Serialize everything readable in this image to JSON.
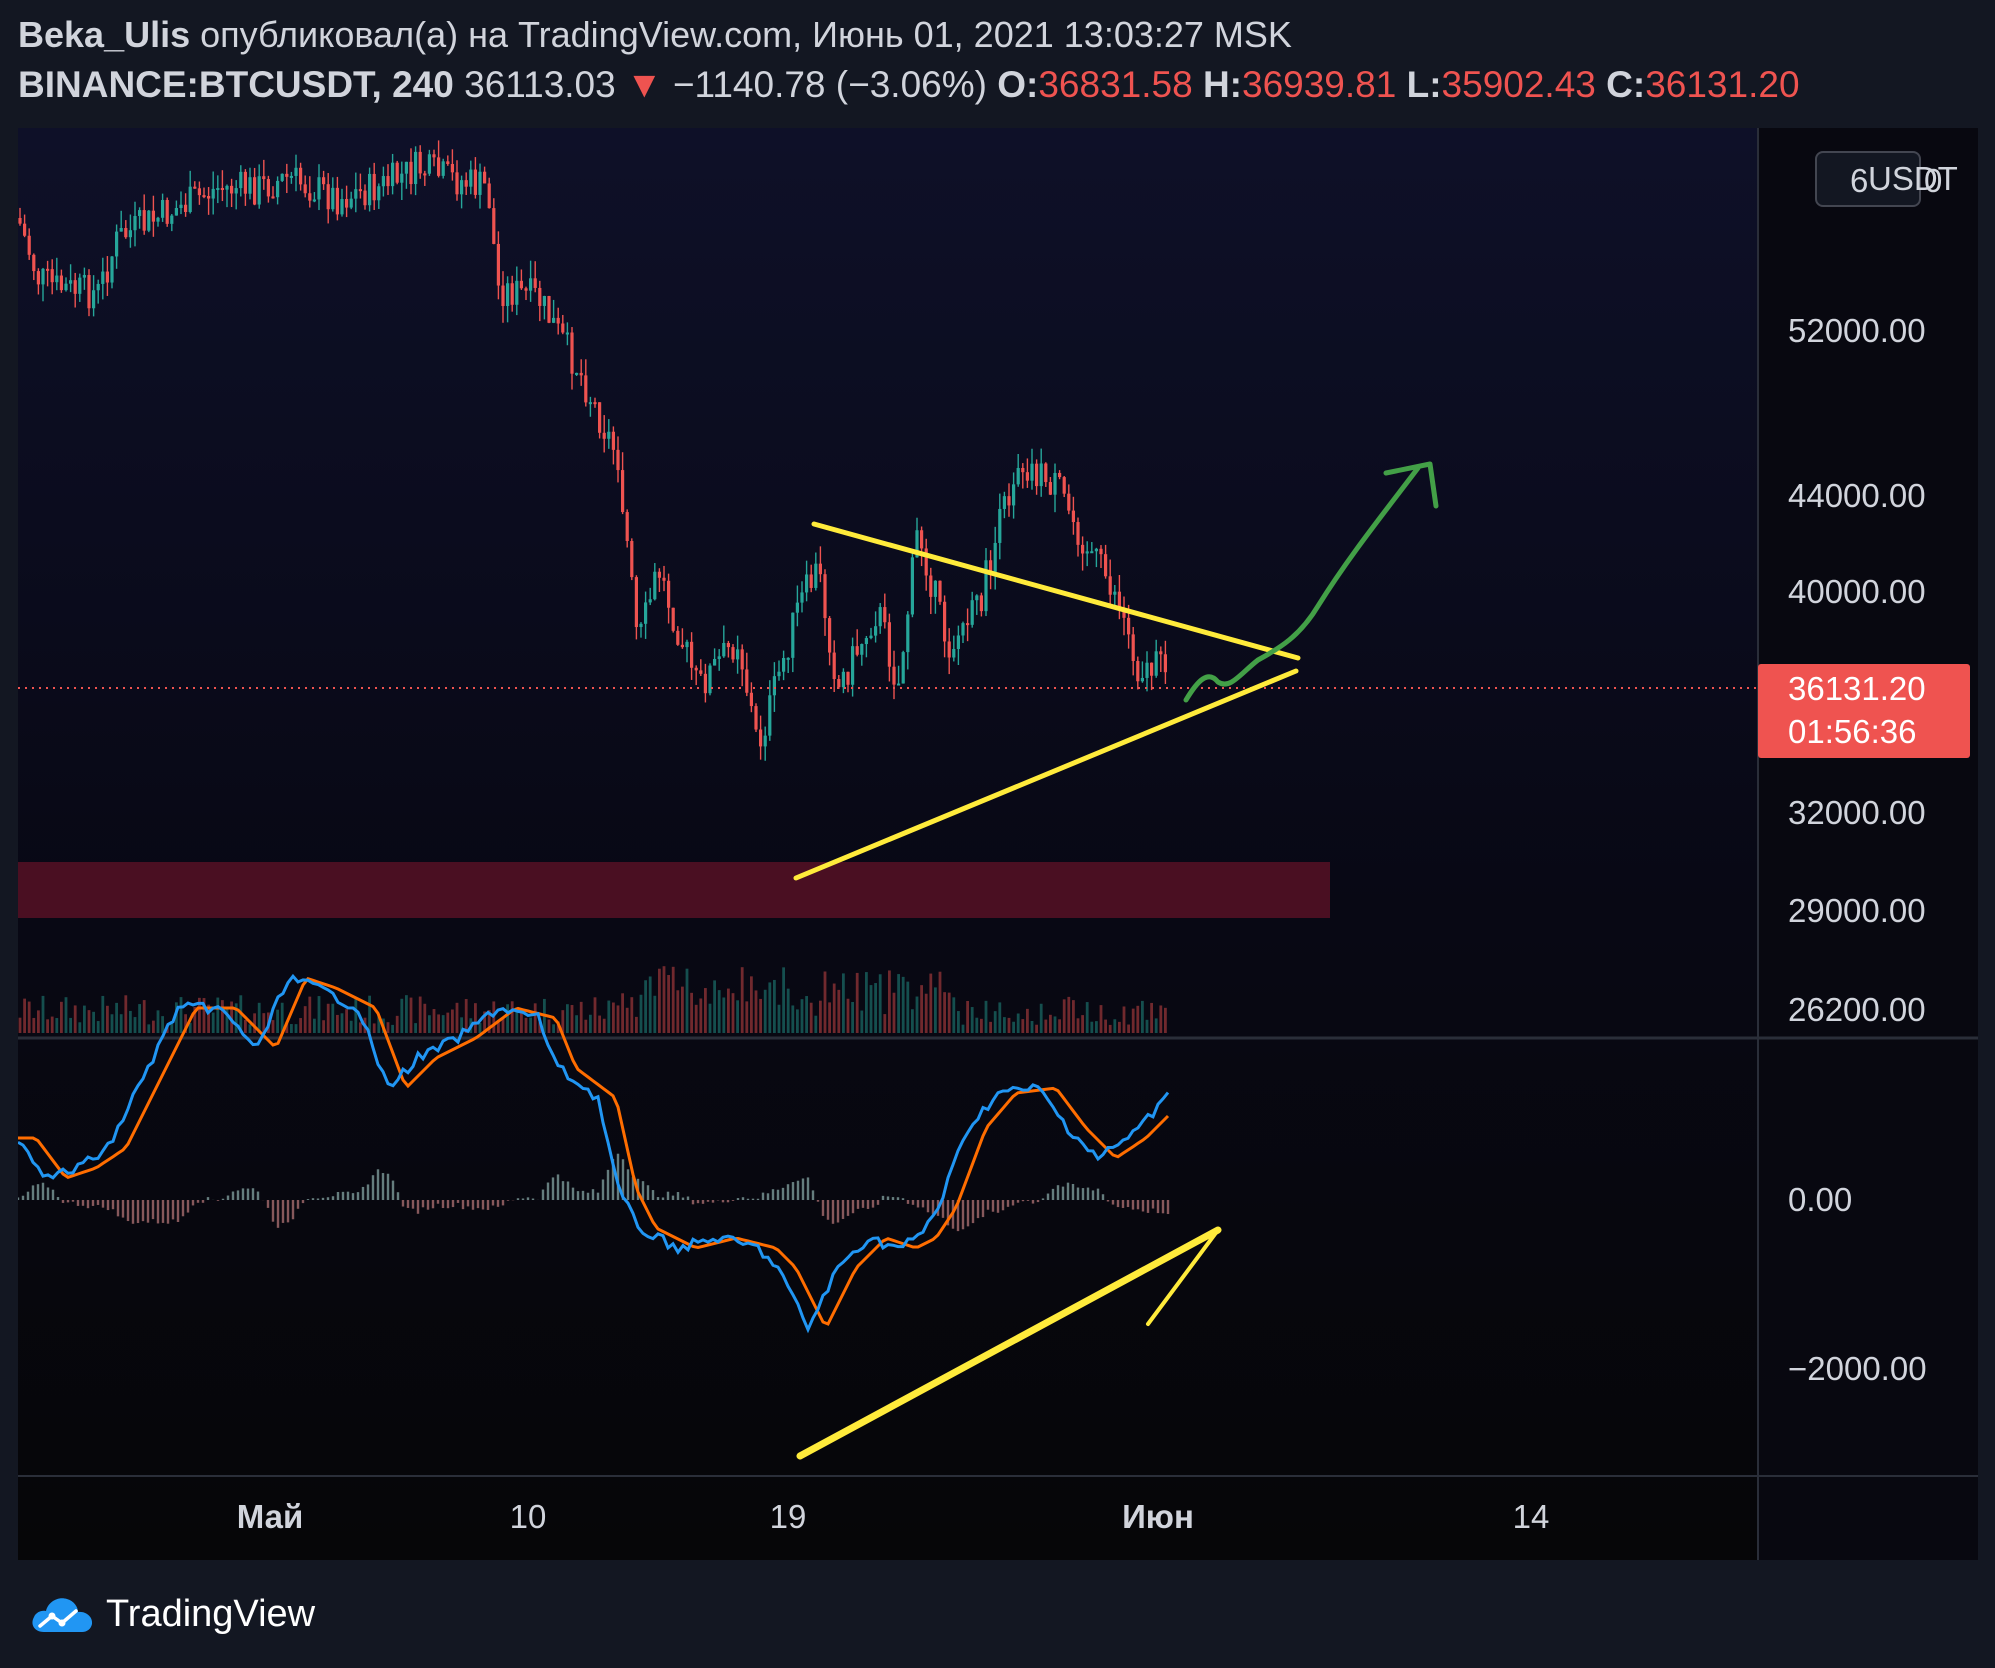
{
  "header": {
    "author": "Beka_Ulis",
    "published_text": "опубликовал(а) на TradingView.com, Июнь 01, 2021 13:03:27 MSK",
    "symbol": "BINANCE:BTCUSDT, 240",
    "last_price": "36113.03",
    "change_arrow": "▼",
    "change": "−1140.78 (−3.06%)",
    "open_label": "O:",
    "open": "36831.58",
    "high_label": "H:",
    "high": "36939.81",
    "low_label": "L:",
    "low": "35902.43",
    "close_label": "C:",
    "close": "36131.20"
  },
  "price_axis": {
    "currency_badge": "USDT",
    "top_partial_left": "6",
    "top_partial_right": "0",
    "ticks": [
      "52000.00",
      "44000.00",
      "40000.00",
      "32000.00",
      "29000.00",
      "26200.00"
    ]
  },
  "price_marker": {
    "price": "36131.20",
    "countdown": "01:56:36",
    "color": "#ef5350"
  },
  "indicator_axis": {
    "ticks": [
      "0.00",
      "−2000.00"
    ]
  },
  "time_axis": {
    "ticks": [
      "Май",
      "10",
      "19",
      "Июн",
      "14"
    ]
  },
  "colors": {
    "up": "#26a69a",
    "down": "#ef5350",
    "trendline": "#ffeb3b",
    "arrow": "#43a047",
    "macd": "#2196f3",
    "signal": "#ff6d00",
    "zone": "#4a0f22"
  },
  "branding": {
    "logo_text": "TradingView",
    "logo_icon": "tradingview-cloud-icon"
  }
}
